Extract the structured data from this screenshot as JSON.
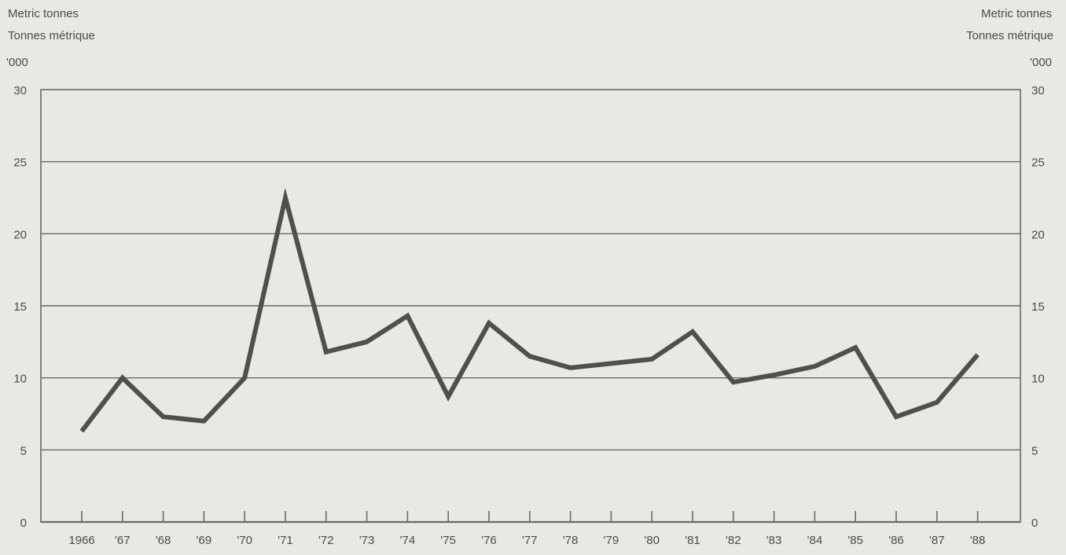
{
  "axis_units": {
    "left": {
      "unit_en": "Metric  tonnes",
      "unit_fr": "Tonnes métrique",
      "scale": "'000"
    },
    "right": {
      "unit_en": "Metric  tonnes",
      "unit_fr": "Tonnes métrique",
      "scale": "'000"
    }
  },
  "chart_data": {
    "type": "line",
    "title": "",
    "xlabel": "",
    "ylabel": "Metric tonnes / Tonnes métrique '000",
    "x": [
      "1966",
      "'67",
      "'68",
      "'69",
      "'70",
      "'71",
      "'72",
      "'73",
      "'74",
      "'75",
      "'76",
      "'77",
      "'78",
      "'79",
      "'80",
      "'81",
      "'82",
      "'83",
      "'84",
      "'85",
      "'86",
      "'87",
      "'88"
    ],
    "series": [
      {
        "values": [
          6.3,
          10.0,
          7.3,
          7.0,
          10.0,
          22.5,
          11.8,
          12.5,
          14.3,
          8.7,
          13.8,
          11.5,
          10.7,
          11.0,
          11.3,
          13.2,
          9.7,
          10.2,
          10.8,
          12.1,
          7.3,
          8.3,
          11.6
        ]
      }
    ],
    "ylim": [
      0,
      30
    ],
    "yticks": [
      "0",
      "5",
      "10",
      "15",
      "20",
      "25",
      "30"
    ],
    "grid": true,
    "right_axis": true,
    "colors": {
      "line": "#4f4f4d",
      "grid": "#6a6a66",
      "frame": "#6a6a66",
      "background": "#e9e9e3"
    }
  }
}
